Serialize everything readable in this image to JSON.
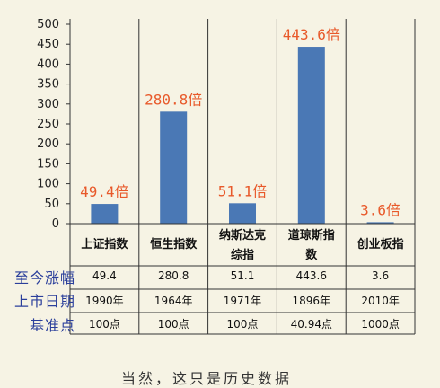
{
  "chart_data": {
    "type": "bar",
    "categories": [
      "上证指数",
      "恒生指数",
      "纳斯达克综指",
      "道琼斯指数",
      "创业板指"
    ],
    "category_lines": [
      [
        "上证指数"
      ],
      [
        "恒生指数"
      ],
      [
        "纳斯达克",
        "综指"
      ],
      [
        "道琼斯指",
        "数"
      ],
      [
        "创业板指"
      ]
    ],
    "values": [
      49.4,
      280.8,
      51.1,
      443.6,
      3.6
    ],
    "data_labels": [
      "49.4倍",
      "280.8倍",
      "51.1倍",
      "443.6倍",
      "3.6倍"
    ],
    "ylim": [
      0,
      500
    ],
    "yticks": [
      0,
      50,
      100,
      150,
      200,
      250,
      300,
      350,
      400,
      450,
      500
    ],
    "bar_color": "#4a78b5",
    "label_color": "#e8592a",
    "grid": false
  },
  "table": {
    "rows": [
      {
        "header": "至今涨幅",
        "cells": [
          "49.4",
          "280.8",
          "51.1",
          "443.6",
          "3.6"
        ]
      },
      {
        "header": "上市日期",
        "cells": [
          "1990年",
          "1964年",
          "1971年",
          "1896年",
          "2010年"
        ]
      },
      {
        "header": "基准点",
        "cells": [
          "100点",
          "100点",
          "100点",
          "40.94点",
          "1000点"
        ]
      }
    ]
  },
  "caption": "当然，这只是历史数据"
}
